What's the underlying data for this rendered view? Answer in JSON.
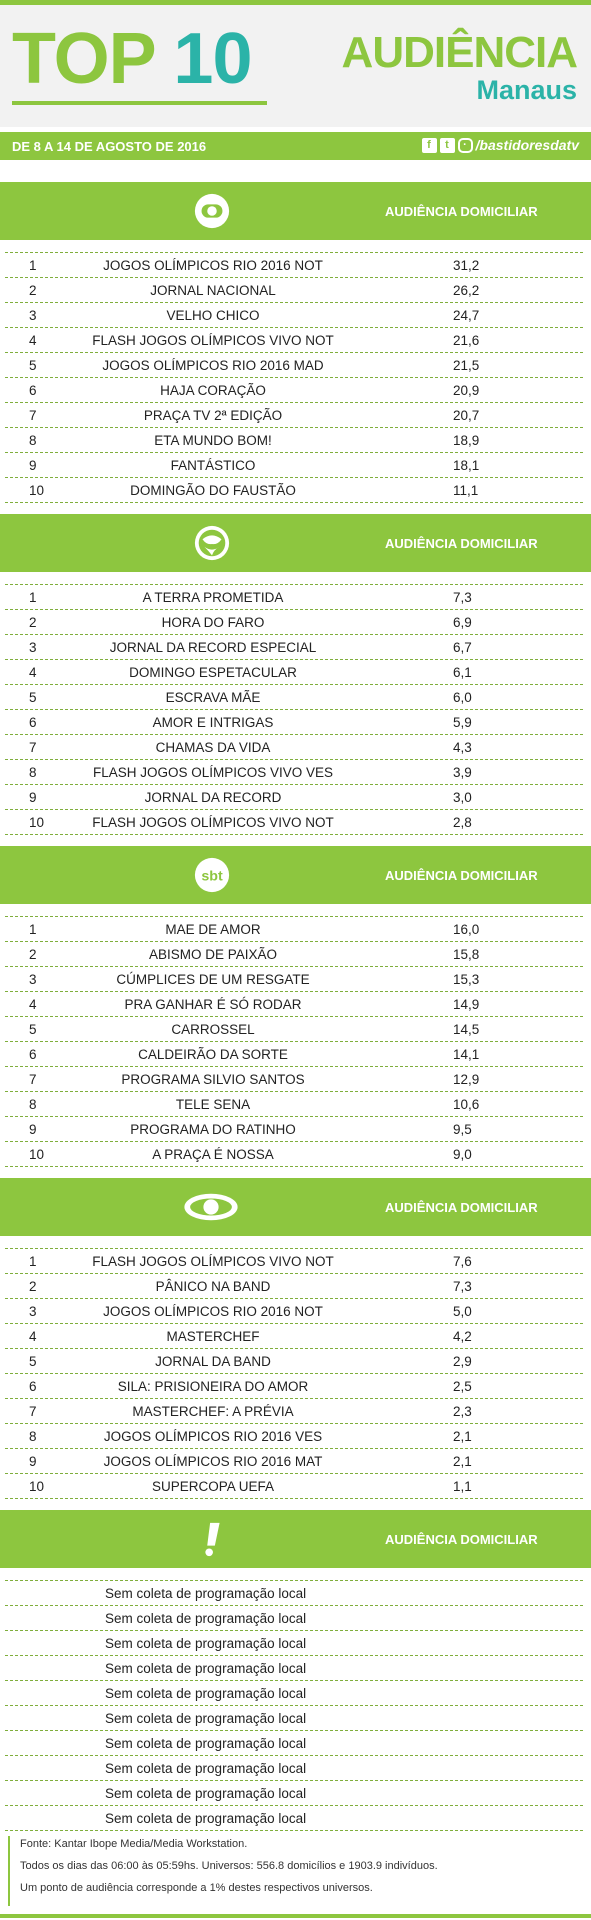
{
  "header": {
    "top_word": "TOP",
    "top_num": "10",
    "audiencia": "AUDIÊNCIA",
    "city": "Manaus"
  },
  "datebar": {
    "date": "DE 8 A 14 DE AGOSTO DE 2016",
    "handle": "/bastidoresdatv"
  },
  "colors": {
    "accent": "#8dc63f",
    "teal": "#2bb3a8"
  },
  "sections": [
    {
      "logo": "globo-logo-icon",
      "label": "AUDIÊNCIA DOMICILIAR",
      "rows": [
        {
          "rank": "1",
          "program": "JOGOS OLÍMPICOS RIO 2016 NOT",
          "value": "31,2"
        },
        {
          "rank": "2",
          "program": "JORNAL NACIONAL",
          "value": "26,2"
        },
        {
          "rank": "3",
          "program": "VELHO CHICO",
          "value": "24,7"
        },
        {
          "rank": "4",
          "program": "FLASH JOGOS OLÍMPICOS VIVO NOT",
          "value": "21,6"
        },
        {
          "rank": "5",
          "program": "JOGOS OLÍMPICOS RIO 2016 MAD",
          "value": "21,5"
        },
        {
          "rank": "6",
          "program": "HAJA CORAÇÃO",
          "value": "20,9"
        },
        {
          "rank": "7",
          "program": "PRAÇA TV 2ª EDIÇÃO",
          "value": "20,7"
        },
        {
          "rank": "8",
          "program": "ETA MUNDO BOM!",
          "value": "18,9"
        },
        {
          "rank": "9",
          "program": "FANTÁSTICO",
          "value": "18,1"
        },
        {
          "rank": "10",
          "program": "DOMINGÃO DO FAUSTÃO",
          "value": "11,1"
        }
      ]
    },
    {
      "logo": "record-logo-icon",
      "label": "AUDIÊNCIA DOMICILIAR",
      "rows": [
        {
          "rank": "1",
          "program": "A TERRA PROMETIDA",
          "value": "7,3"
        },
        {
          "rank": "2",
          "program": "HORA DO FARO",
          "value": "6,9"
        },
        {
          "rank": "3",
          "program": "JORNAL DA RECORD ESPECIAL",
          "value": "6,7"
        },
        {
          "rank": "4",
          "program": "DOMINGO ESPETACULAR",
          "value": "6,1"
        },
        {
          "rank": "5",
          "program": "ESCRAVA MÃE",
          "value": "6,0"
        },
        {
          "rank": "6",
          "program": "AMOR E INTRIGAS",
          "value": "5,9"
        },
        {
          "rank": "7",
          "program": "CHAMAS DA VIDA",
          "value": "4,3"
        },
        {
          "rank": "8",
          "program": "FLASH JOGOS OLÍMPICOS VIVO VES",
          "value": "3,9"
        },
        {
          "rank": "9",
          "program": "JORNAL DA RECORD",
          "value": "3,0"
        },
        {
          "rank": "10",
          "program": "FLASH JOGOS OLÍMPICOS VIVO NOT",
          "value": "2,8"
        }
      ]
    },
    {
      "logo": "sbt-logo-icon",
      "logo_text": "sbt",
      "label": "AUDIÊNCIA DOMICILIAR",
      "rows": [
        {
          "rank": "1",
          "program": "MAE DE AMOR",
          "value": "16,0"
        },
        {
          "rank": "2",
          "program": "ABISMO DE PAIXÃO",
          "value": "15,8"
        },
        {
          "rank": "3",
          "program": "CÚMPLICES DE UM RESGATE",
          "value": "15,3"
        },
        {
          "rank": "4",
          "program": "PRA GANHAR É SÓ RODAR",
          "value": "14,9"
        },
        {
          "rank": "5",
          "program": "CARROSSEL",
          "value": "14,5"
        },
        {
          "rank": "6",
          "program": "CALDEIRÃO DA SORTE",
          "value": "14,1"
        },
        {
          "rank": "7",
          "program": "PROGRAMA SILVIO SANTOS",
          "value": "12,9"
        },
        {
          "rank": "8",
          "program": "TELE SENA",
          "value": "10,6"
        },
        {
          "rank": "9",
          "program": "PROGRAMA DO RATINHO",
          "value": "9,5"
        },
        {
          "rank": "10",
          "program": "A PRAÇA É NOSSA",
          "value": "9,0"
        }
      ]
    },
    {
      "logo": "band-logo-icon",
      "label": "AUDIÊNCIA DOMICILIAR",
      "rows": [
        {
          "rank": "1",
          "program": "FLASH JOGOS OLÍMPICOS VIVO NOT",
          "value": "7,6"
        },
        {
          "rank": "2",
          "program": "PÂNICO NA BAND",
          "value": "7,3"
        },
        {
          "rank": "3",
          "program": "JOGOS OLÍMPICOS RIO 2016 NOT",
          "value": "5,0"
        },
        {
          "rank": "4",
          "program": "MASTERCHEF",
          "value": "4,2"
        },
        {
          "rank": "5",
          "program": "JORNAL DA BAND",
          "value": "2,9"
        },
        {
          "rank": "6",
          "program": "SILA: PRISIONEIRA DO AMOR",
          "value": "2,5"
        },
        {
          "rank": "7",
          "program": "MASTERCHEF: A PRÉVIA",
          "value": "2,3"
        },
        {
          "rank": "8",
          "program": "JOGOS OLÍMPICOS RIO 2016 VES",
          "value": "2,1"
        },
        {
          "rank": "9",
          "program": "JOGOS OLÍMPICOS RIO 2016 MAT",
          "value": "2,1"
        },
        {
          "rank": "10",
          "program": "SUPERCOPA UEFA",
          "value": "1,1"
        }
      ]
    },
    {
      "logo": "redetv-logo-icon",
      "label": "AUDIÊNCIA DOMICILIAR",
      "rows": [
        {
          "program": "Sem coleta de programação local"
        },
        {
          "program": "Sem coleta de programação local"
        },
        {
          "program": "Sem coleta de programação local"
        },
        {
          "program": "Sem coleta de programação local"
        },
        {
          "program": "Sem coleta de programação local"
        },
        {
          "program": "Sem coleta de programação local"
        },
        {
          "program": "Sem coleta de programação local"
        },
        {
          "program": "Sem coleta de programação local"
        },
        {
          "program": "Sem coleta de programação local"
        },
        {
          "program": "Sem coleta de programação local"
        }
      ]
    }
  ],
  "footer": {
    "line1": "Fonte: Kantar Ibope Media/Media Workstation.",
    "line2": "Todos os dias das 06:00 às 05:59hs. Universos: 556.8 domicílios e 1903.9 indivíduos.",
    "line3": "Um ponto de audiência corresponde a 1% destes respectivos universos."
  }
}
